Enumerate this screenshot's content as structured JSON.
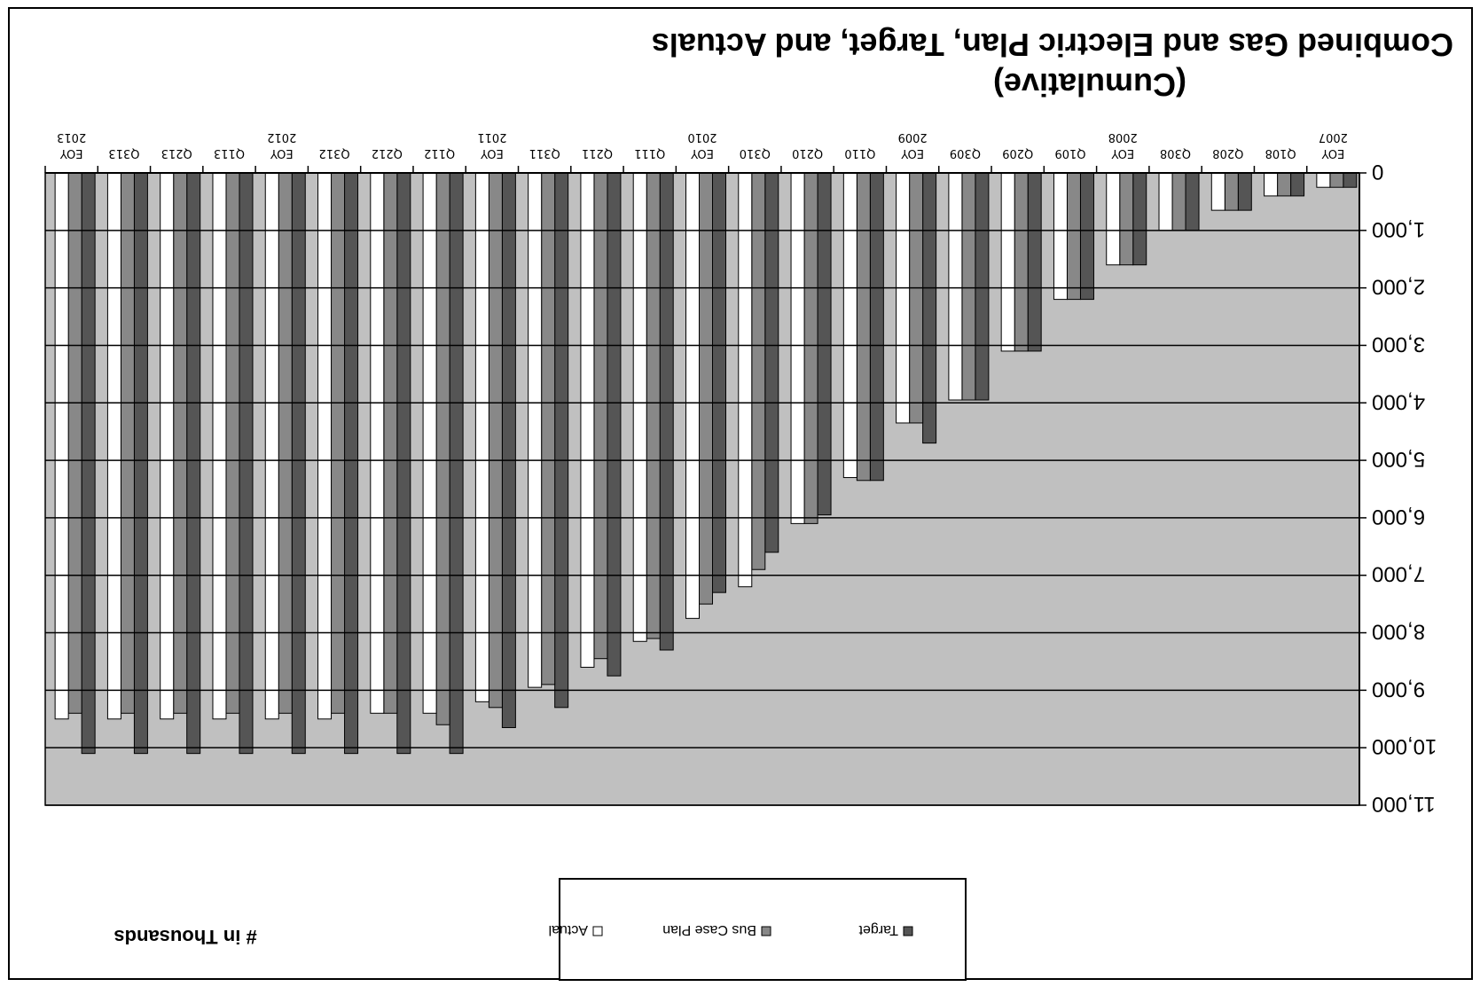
{
  "chart_data": {
    "type": "bar",
    "title": "Combined Gas and Electric Plan, Target, and Actuals",
    "subtitle": "(Cumulative)",
    "ylabel": "# in Thousands",
    "ylim": [
      0,
      11000
    ],
    "yticks": [
      "0",
      "1,000",
      "2,000",
      "3,000",
      "4,000",
      "5,000",
      "6,000",
      "7,000",
      "8,000",
      "9,000",
      "10,000",
      "11,000"
    ],
    "ytick_values": [
      0,
      1000,
      2000,
      3000,
      4000,
      5000,
      6000,
      7000,
      8000,
      9000,
      10000,
      11000
    ],
    "grid": true,
    "legend_position": "top",
    "categories": [
      "EOY 2007",
      "Q108",
      "Q208",
      "Q308",
      "EOY 2008",
      "Q109",
      "Q209",
      "Q309",
      "EOY 2009",
      "Q110",
      "Q210",
      "Q310",
      "EOY 2010",
      "Q111",
      "Q211",
      "Q311",
      "EOY 2011",
      "Q112",
      "Q212",
      "Q312",
      "EOY 2012",
      "Q113",
      "Q213",
      "Q313",
      "EOY 2013"
    ],
    "category_labels": [
      {
        "line1": "EOY",
        "line2": "2007"
      },
      {
        "line1": "Q108",
        "line2": ""
      },
      {
        "line1": "Q208",
        "line2": ""
      },
      {
        "line1": "Q308",
        "line2": ""
      },
      {
        "line1": "EOY",
        "line2": "2008"
      },
      {
        "line1": "Q109",
        "line2": ""
      },
      {
        "line1": "Q209",
        "line2": ""
      },
      {
        "line1": "Q309",
        "line2": ""
      },
      {
        "line1": "EOY",
        "line2": "2009"
      },
      {
        "line1": "Q110",
        "line2": ""
      },
      {
        "line1": "Q210",
        "line2": ""
      },
      {
        "line1": "Q310",
        "line2": ""
      },
      {
        "line1": "EOY",
        "line2": "2010"
      },
      {
        "line1": "Q111",
        "line2": ""
      },
      {
        "line1": "Q211",
        "line2": ""
      },
      {
        "line1": "Q311",
        "line2": ""
      },
      {
        "line1": "EOY",
        "line2": "2011"
      },
      {
        "line1": "Q112",
        "line2": ""
      },
      {
        "line1": "Q212",
        "line2": ""
      },
      {
        "line1": "Q312",
        "line2": ""
      },
      {
        "line1": "EOY",
        "line2": "2012"
      },
      {
        "line1": "Q113",
        "line2": ""
      },
      {
        "line1": "Q213",
        "line2": ""
      },
      {
        "line1": "Q313",
        "line2": ""
      },
      {
        "line1": "EOY",
        "line2": "2013"
      }
    ],
    "series": [
      {
        "name": "Target",
        "color": "#555555",
        "values": [
          250,
          400,
          650,
          1000,
          1600,
          2200,
          3100,
          3950,
          4700,
          5350,
          5950,
          6600,
          7300,
          8300,
          8750,
          9300,
          9650,
          10100,
          10100,
          10100,
          10100,
          10100,
          10100,
          10100,
          10100
        ]
      },
      {
        "name": "Bus Case Plan",
        "color": "#888888",
        "values": [
          250,
          400,
          650,
          1000,
          1600,
          2200,
          3100,
          3950,
          4350,
          5350,
          6100,
          6900,
          7500,
          8100,
          8450,
          8900,
          9300,
          9600,
          9400,
          9400,
          9400,
          9400,
          9400,
          9400,
          9400
        ]
      },
      {
        "name": "Actual",
        "color": "#ffffff",
        "values": [
          250,
          400,
          650,
          1000,
          1600,
          2200,
          3100,
          3950,
          4350,
          5300,
          6100,
          7200,
          7750,
          8150,
          8600,
          8950,
          9200,
          9400,
          9400,
          9500,
          9500,
          9500,
          9500,
          9500,
          9500
        ]
      }
    ]
  },
  "legend": {
    "items": [
      {
        "label": "Target",
        "color": "#555555"
      },
      {
        "label": "Bus Case Plan",
        "color": "#888888"
      },
      {
        "label": "Actual",
        "color": "#ffffff"
      }
    ]
  }
}
